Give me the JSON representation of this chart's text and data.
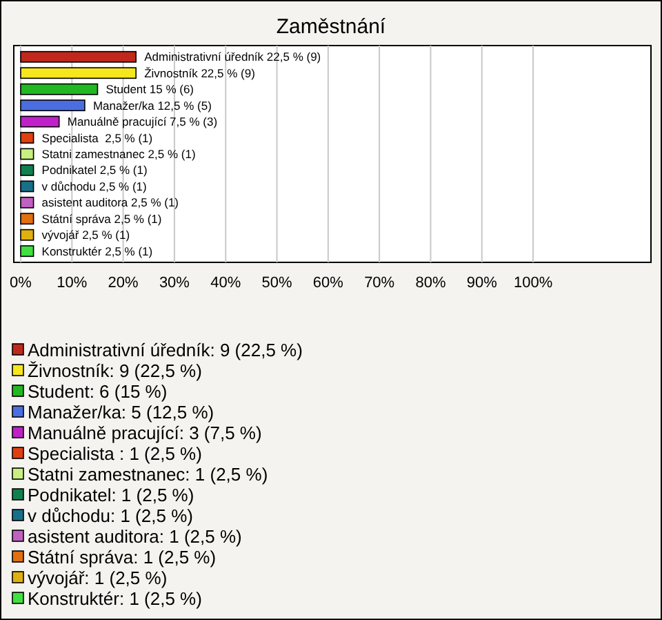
{
  "chart_data": {
    "type": "bar",
    "orientation": "horizontal",
    "title": "Zaměstnání",
    "categories": [
      "Administrativní úředník",
      "Živnostník",
      "Student",
      "Manažer/ka",
      "Manuálně pracující",
      "Specialista ",
      "Statni zamestnanec",
      "Podnikatel",
      "v důchodu",
      "asistent auditora",
      "Státní správa",
      "vývojář",
      "Konstruktér"
    ],
    "series": [
      {
        "name": "Administrativní úředník: 9 (22,5 %)",
        "color": "#c0281c",
        "values": [
          22.5,
          null,
          null,
          null,
          null,
          null,
          null,
          null,
          null,
          null,
          null,
          null,
          null
        ],
        "value_labels": [
          "22,5 % (9)",
          null,
          null,
          null,
          null,
          null,
          null,
          null,
          null,
          null,
          null,
          null,
          null
        ]
      },
      {
        "name": "Živnostník: 9 (22,5 %)",
        "color": "#f5e61e",
        "values": [
          null,
          22.5,
          null,
          null,
          null,
          null,
          null,
          null,
          null,
          null,
          null,
          null,
          null
        ],
        "value_labels": [
          null,
          "22,5 % (9)",
          null,
          null,
          null,
          null,
          null,
          null,
          null,
          null,
          null,
          null,
          null
        ]
      },
      {
        "name": "Student: 6 (15 %)",
        "color": "#22b822",
        "values": [
          null,
          null,
          15,
          null,
          null,
          null,
          null,
          null,
          null,
          null,
          null,
          null,
          null
        ],
        "value_labels": [
          null,
          null,
          "15 % (6)",
          null,
          null,
          null,
          null,
          null,
          null,
          null,
          null,
          null,
          null
        ]
      },
      {
        "name": "Manažer/ka: 5 (12,5 %)",
        "color": "#4a6ee0",
        "values": [
          null,
          null,
          null,
          12.5,
          null,
          null,
          null,
          null,
          null,
          null,
          null,
          null,
          null
        ],
        "value_labels": [
          null,
          null,
          null,
          "12,5 % (5)",
          null,
          null,
          null,
          null,
          null,
          null,
          null,
          null,
          null
        ]
      },
      {
        "name": "Manuálně pracující: 3 (7,5 %)",
        "color": "#c020c8",
        "values": [
          null,
          null,
          null,
          null,
          7.5,
          null,
          null,
          null,
          null,
          null,
          null,
          null,
          null
        ],
        "value_labels": [
          null,
          null,
          null,
          null,
          "7,5 % (3)",
          null,
          null,
          null,
          null,
          null,
          null,
          null,
          null
        ]
      },
      {
        "name": "Specialista : 1 (2,5 %)",
        "color": "#e04010",
        "values": [
          null,
          null,
          null,
          null,
          null,
          2.5,
          null,
          null,
          null,
          null,
          null,
          null,
          null
        ],
        "value_labels": [
          null,
          null,
          null,
          null,
          null,
          "2,5 % (1)",
          null,
          null,
          null,
          null,
          null,
          null,
          null
        ]
      },
      {
        "name": "Statni zamestnanec: 1 (2,5 %)",
        "color": "#c8f080",
        "values": [
          null,
          null,
          null,
          null,
          null,
          null,
          2.5,
          null,
          null,
          null,
          null,
          null,
          null
        ],
        "value_labels": [
          null,
          null,
          null,
          null,
          null,
          null,
          "2,5 % (1)",
          null,
          null,
          null,
          null,
          null,
          null
        ]
      },
      {
        "name": "Podnikatel: 1 (2,5 %)",
        "color": "#108050",
        "values": [
          null,
          null,
          null,
          null,
          null,
          null,
          null,
          2.5,
          null,
          null,
          null,
          null,
          null
        ],
        "value_labels": [
          null,
          null,
          null,
          null,
          null,
          null,
          null,
          "2,5 % (1)",
          null,
          null,
          null,
          null,
          null
        ]
      },
      {
        "name": "v důchodu: 1 (2,5 %)",
        "color": "#187088",
        "values": [
          null,
          null,
          null,
          null,
          null,
          null,
          null,
          null,
          2.5,
          null,
          null,
          null,
          null
        ],
        "value_labels": [
          null,
          null,
          null,
          null,
          null,
          null,
          null,
          null,
          "2,5 % (1)",
          null,
          null,
          null,
          null
        ]
      },
      {
        "name": "asistent auditora: 1 (2,5 %)",
        "color": "#c060c0",
        "values": [
          null,
          null,
          null,
          null,
          null,
          null,
          null,
          null,
          null,
          2.5,
          null,
          null,
          null
        ],
        "value_labels": [
          null,
          null,
          null,
          null,
          null,
          null,
          null,
          null,
          null,
          "2,5 % (1)",
          null,
          null,
          null
        ]
      },
      {
        "name": "Státní správa: 1 (2,5 %)",
        "color": "#e07010",
        "values": [
          null,
          null,
          null,
          null,
          null,
          null,
          null,
          null,
          null,
          null,
          2.5,
          null,
          null
        ],
        "value_labels": [
          null,
          null,
          null,
          null,
          null,
          null,
          null,
          null,
          null,
          null,
          "2,5 % (1)",
          null,
          null
        ]
      },
      {
        "name": "vývojář: 1 (2,5 %)",
        "color": "#e0b010",
        "values": [
          null,
          null,
          null,
          null,
          null,
          null,
          null,
          null,
          null,
          null,
          null,
          2.5,
          null
        ],
        "value_labels": [
          null,
          null,
          null,
          null,
          null,
          null,
          null,
          null,
          null,
          null,
          null,
          "2,5 % (1)",
          null
        ]
      },
      {
        "name": "Konstruktér: 1 (2,5 %)",
        "color": "#40e040",
        "values": [
          null,
          null,
          null,
          null,
          null,
          null,
          null,
          null,
          null,
          null,
          null,
          null,
          2.5
        ],
        "value_labels": [
          null,
          null,
          null,
          null,
          null,
          null,
          null,
          null,
          null,
          null,
          null,
          null,
          "2,5 % (1)"
        ]
      }
    ],
    "xlim": [
      0,
      123
    ],
    "xticks": [
      {
        "value": 0,
        "label": "0%"
      },
      {
        "value": 10,
        "label": "10%"
      },
      {
        "value": 20,
        "label": "20%"
      },
      {
        "value": 30,
        "label": "30%"
      },
      {
        "value": 40,
        "label": "40%"
      },
      {
        "value": 50,
        "label": "50%"
      },
      {
        "value": 60,
        "label": "60%"
      },
      {
        "value": 70,
        "label": "70%"
      },
      {
        "value": 80,
        "label": "80%"
      },
      {
        "value": 90,
        "label": "90%"
      },
      {
        "value": 100,
        "label": "100%"
      }
    ],
    "grid": "x",
    "legend": "bottom",
    "tick_labels": "x"
  }
}
